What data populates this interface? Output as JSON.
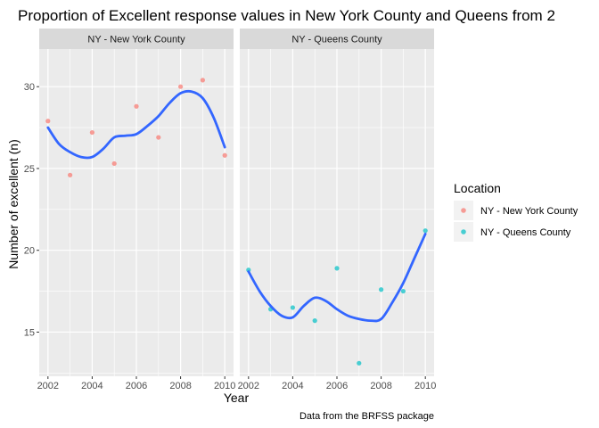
{
  "chart_data": {
    "type": "scatter",
    "title": "Proportion of Excellent response values in New York County and Queens from 2",
    "xlabel": "Year",
    "ylabel": "Number of excellent (n)",
    "caption": "Data from the BRFSS package",
    "xlim": [
      2002,
      2010
    ],
    "ylim": [
      12.3,
      32.3
    ],
    "x_ticks": [
      2002,
      2004,
      2006,
      2008,
      2010
    ],
    "y_ticks": [
      15,
      20,
      25,
      30
    ],
    "grid": true,
    "legend": {
      "title": "Location",
      "placement": "right",
      "entries": [
        "NY - New York County",
        "NY - Queens County"
      ]
    },
    "colors": {
      "new_york": "#F8766D",
      "queens": "#00BFC4",
      "smooth": "#3366FF",
      "panel_bg": "#EBEBEB",
      "strip_bg": "#D9D9D9"
    },
    "panels": [
      {
        "strip": "NY - New York County",
        "color_key": "new_york",
        "points": [
          [
            2002,
            27.9
          ],
          [
            2003,
            24.6
          ],
          [
            2004,
            27.2
          ],
          [
            2005,
            25.3
          ],
          [
            2006,
            28.8
          ],
          [
            2007,
            26.9
          ],
          [
            2008,
            30.0
          ],
          [
            2009,
            30.4
          ],
          [
            2010,
            25.8
          ]
        ],
        "smooth": [
          [
            2002,
            27.5
          ],
          [
            2002.5,
            26.5
          ],
          [
            2003,
            26.0
          ],
          [
            2003.5,
            25.7
          ],
          [
            2004,
            25.7
          ],
          [
            2004.5,
            26.2
          ],
          [
            2005,
            26.9
          ],
          [
            2005.5,
            27.0
          ],
          [
            2006,
            27.1
          ],
          [
            2006.5,
            27.6
          ],
          [
            2007,
            28.2
          ],
          [
            2007.5,
            29.0
          ],
          [
            2008,
            29.6
          ],
          [
            2008.5,
            29.7
          ],
          [
            2009,
            29.3
          ],
          [
            2009.5,
            28.1
          ],
          [
            2010,
            26.3
          ]
        ]
      },
      {
        "strip": "NY - Queens County",
        "color_key": "queens",
        "points": [
          [
            2002,
            18.8
          ],
          [
            2003,
            16.4
          ],
          [
            2004,
            16.5
          ],
          [
            2005,
            15.7
          ],
          [
            2006,
            18.9
          ],
          [
            2007,
            13.1
          ],
          [
            2008,
            17.6
          ],
          [
            2009,
            17.5
          ],
          [
            2010,
            21.2
          ]
        ],
        "smooth": [
          [
            2002,
            18.7
          ],
          [
            2002.5,
            17.5
          ],
          [
            2003,
            16.6
          ],
          [
            2003.5,
            16.0
          ],
          [
            2004,
            15.9
          ],
          [
            2004.5,
            16.6
          ],
          [
            2005,
            17.1
          ],
          [
            2005.5,
            16.9
          ],
          [
            2006,
            16.4
          ],
          [
            2006.5,
            16.0
          ],
          [
            2007,
            15.8
          ],
          [
            2007.5,
            15.7
          ],
          [
            2008,
            15.8
          ],
          [
            2008.5,
            16.8
          ],
          [
            2009,
            18.0
          ],
          [
            2009.5,
            19.5
          ],
          [
            2010,
            21.0
          ]
        ]
      }
    ]
  }
}
